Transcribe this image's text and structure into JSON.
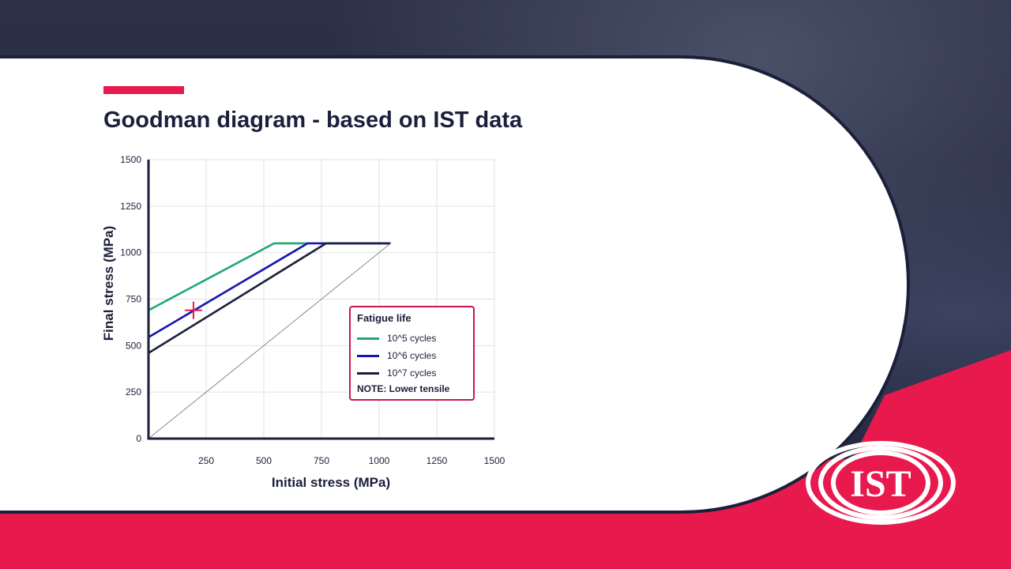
{
  "slide": {
    "title": "Goodman diagram - based on IST data"
  },
  "colors": {
    "accent": "#e8194d",
    "navy": "#1b1f3a",
    "background": "#262b42"
  },
  "legend": {
    "title": "Fatigue life",
    "items": [
      "10^5 cycles",
      "10^6 cycles",
      "10^7 cycles"
    ],
    "note": "NOTE: Lower tensile"
  },
  "logo": {
    "text": "IST"
  },
  "chart_data": {
    "type": "line",
    "title": "",
    "xlabel": "Initial stress (MPa)",
    "ylabel": "Final stress (MPa)",
    "xlim": [
      0,
      1500
    ],
    "ylim": [
      0,
      1500
    ],
    "xticks": [
      "250",
      "500",
      "750",
      "1000",
      "1250",
      "1500"
    ],
    "yticks": [
      "0",
      "250",
      "500",
      "750",
      "1000",
      "1250",
      "1500"
    ],
    "grid": true,
    "legend_position": "right",
    "series": [
      {
        "name": "10^5 cycles",
        "color": "#1fa774",
        "points": [
          [
            0,
            690
          ],
          [
            545,
            1050
          ],
          [
            690,
            1050
          ]
        ]
      },
      {
        "name": "10^6 cycles",
        "color": "#1515b0",
        "points": [
          [
            0,
            545
          ],
          [
            690,
            1050
          ],
          [
            1050,
            1050
          ]
        ]
      },
      {
        "name": "10^7 cycles",
        "color": "#1b1f3a",
        "points": [
          [
            0,
            460
          ],
          [
            770,
            1050
          ],
          [
            1050,
            1050
          ]
        ]
      },
      {
        "name": "",
        "color": "#8a8a8a",
        "points": [
          [
            0,
            0
          ],
          [
            1050,
            1050
          ]
        ]
      }
    ],
    "marker": {
      "x": 195,
      "y": 690,
      "color": "#e8194d"
    }
  }
}
